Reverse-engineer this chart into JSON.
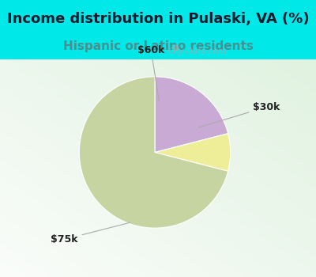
{
  "title": "Income distribution in Pulaski, VA (%)",
  "subtitle": "Hispanic or Latino residents",
  "slices": [
    {
      "label": "$30k",
      "value": 21,
      "color": "#c8aad4"
    },
    {
      "label": "$60k",
      "value": 8,
      "color": "#eeee99"
    },
    {
      "label": "$75k",
      "value": 71,
      "color": "#c5d4a0"
    }
  ],
  "title_color": "#1a1a2e",
  "subtitle_color": "#4a9090",
  "header_bg_color": "#00e8e8",
  "chart_bg_top": "#d8ede0",
  "chart_bg_bottom": "#c8e8d8",
  "title_fontsize": 13,
  "subtitle_fontsize": 11,
  "label_fontsize": 9,
  "startangle": 90,
  "watermark": "City-Data.com",
  "label_positions": {
    "$30k": [
      1.35,
      0.55
    ],
    "$60k": [
      -0.1,
      1.45
    ],
    "$75k": [
      -1.45,
      -0.85
    ]
  },
  "arrow_positions": {
    "$30k": [
      0.55,
      0.32
    ],
    "$60k": [
      0.05,
      0.62
    ],
    "$75k": [
      -0.35,
      -0.9
    ]
  }
}
